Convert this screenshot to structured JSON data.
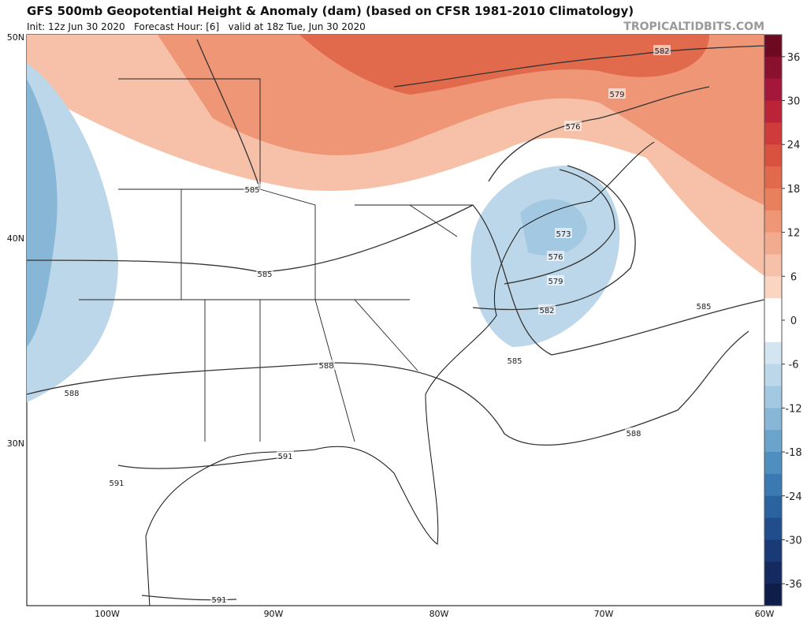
{
  "header": {
    "title": "GFS 500mb Geopotential Height & Anomaly (dam) (based on CFSR 1981-2010 Climatology)",
    "subtitle": "Init: 12z Jun 30 2020   Forecast Hour: [6]   valid at 18z Tue, Jun 30 2020",
    "site": "TROPICALTIDBITS.COM"
  },
  "axes": {
    "lat_labels": [
      "50N",
      "40N",
      "30N"
    ],
    "lon_labels": [
      "100W",
      "90W",
      "80W",
      "70W",
      "60W"
    ]
  },
  "colorbar": {
    "ticks": [
      36,
      30,
      24,
      18,
      12,
      6,
      0,
      -6,
      -12,
      -18,
      -24,
      -30,
      -36
    ],
    "colors": [
      "#6d0a22",
      "#8a1030",
      "#a5173a",
      "#bd2338",
      "#cf3a3a",
      "#d9523f",
      "#e26a4c",
      "#e8805e",
      "#ee9675",
      "#f2ab8e",
      "#f6c1a8",
      "#f9d5c2",
      "#ffffff",
      "#ffffff",
      "#d3e5f0",
      "#bcd7e9",
      "#a3c8e1",
      "#87b6d7",
      "#6aa3cc",
      "#4e8fc0",
      "#3a79b1",
      "#2b63a0",
      "#214d8c",
      "#1a3a76",
      "#142a60",
      "#0e1d4a"
    ]
  },
  "contours": {
    "labels": [
      "582",
      "579",
      "576",
      "585",
      "573",
      "576",
      "579",
      "582",
      "585",
      "585",
      "585",
      "588",
      "588",
      "588",
      "591",
      "591",
      "591"
    ]
  }
}
